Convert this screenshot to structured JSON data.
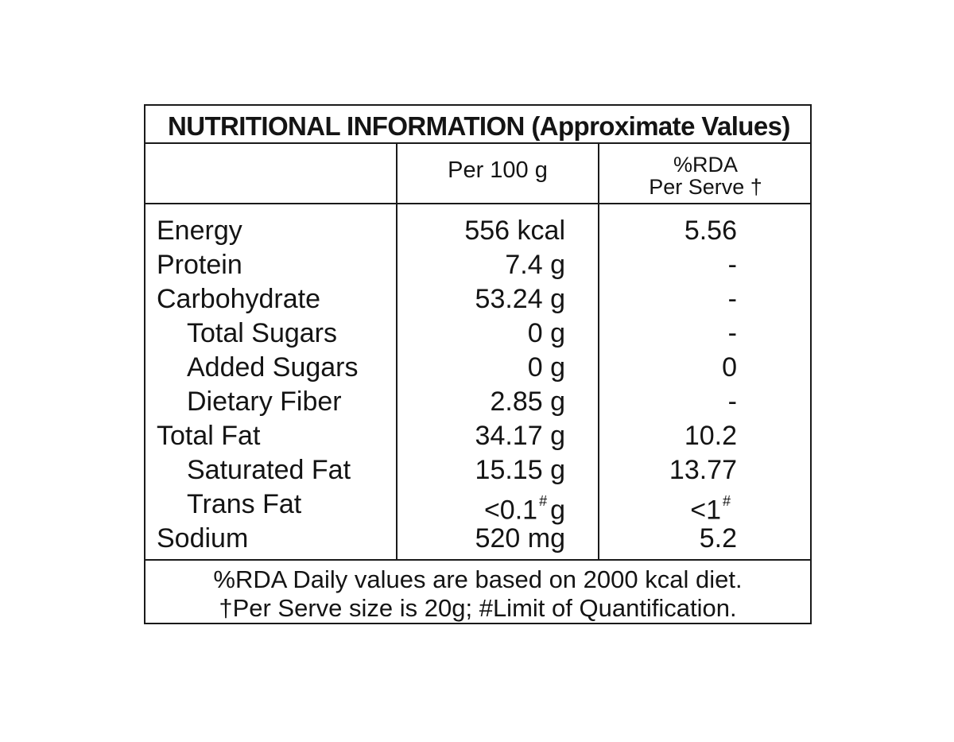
{
  "title": "NUTRITIONAL INFORMATION (Approximate Values)",
  "headers": {
    "per100": "Per 100 g",
    "rda_line1": "%RDA",
    "rda_line2": "Per Serve †"
  },
  "rows": [
    {
      "name": "Energy",
      "value": "556 kcal",
      "rda": "5.56",
      "sub": false
    },
    {
      "name": "Protein",
      "value": "7.4 g",
      "rda": "-",
      "sub": false
    },
    {
      "name": "Carbohydrate",
      "value": "53.24 g",
      "rda": "-",
      "sub": false
    },
    {
      "name": "Total Sugars",
      "value": "0 g",
      "rda": "-",
      "sub": true
    },
    {
      "name": "Added Sugars",
      "value": "0 g",
      "rda": "0",
      "sub": true
    },
    {
      "name": "Dietary Fiber",
      "value": "2.85 g",
      "rda": "-",
      "sub": true
    },
    {
      "name": "Total Fat",
      "value": "34.17 g",
      "rda": "10.2",
      "sub": false
    },
    {
      "name": "Saturated Fat",
      "value": "15.15 g",
      "rda": "13.77",
      "sub": true
    },
    {
      "name": "Trans Fat",
      "value_main": "<0.1",
      "value_sup": "#",
      "value_unit": "g",
      "rda_main": "<1",
      "rda_sup": "#",
      "sub": true
    },
    {
      "name": "Sodium",
      "value": "520 mg",
      "rda": "5.2",
      "sub": false
    }
  ],
  "footer": {
    "line1": "%RDA Daily values are based on 2000 kcal diet.",
    "line2": "†Per Serve size is 20g; #Limit of Quantification."
  }
}
